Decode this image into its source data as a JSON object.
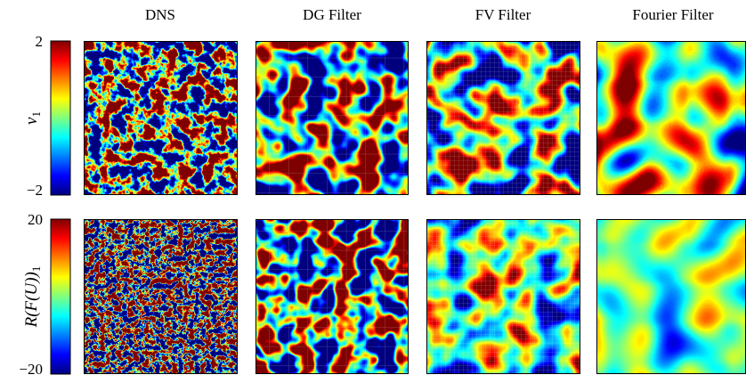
{
  "columns": [
    "DNS",
    "DG Filter",
    "FV Filter",
    "Fourier Filter"
  ],
  "rows": [
    {
      "label": {
        "main": "v",
        "sub": "1"
      },
      "colorbar_max": "2",
      "colorbar_min": "−2"
    },
    {
      "label": {
        "main": "R(F(U))",
        "sub": "1"
      },
      "colorbar_max": "20",
      "colorbar_min": "−20"
    }
  ]
}
